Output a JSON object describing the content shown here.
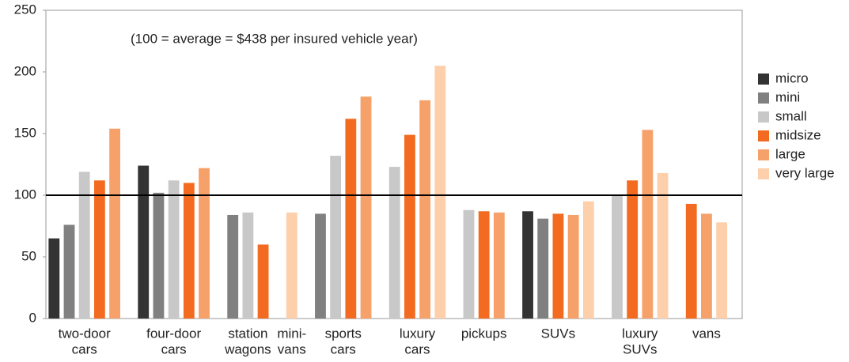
{
  "chart_data": {
    "type": "bar",
    "annotation": "(100 = average = $438 per insured vehicle year)",
    "categories": [
      [
        "two-door",
        "cars"
      ],
      [
        "four-door",
        "cars"
      ],
      [
        "station",
        "wagons"
      ],
      [
        "mini-",
        "vans"
      ],
      [
        "sports",
        "cars"
      ],
      [
        "luxury",
        "cars"
      ],
      [
        "pickups"
      ],
      [
        "SUVs"
      ],
      [
        "luxury",
        "SUVs"
      ],
      [
        "vans"
      ]
    ],
    "series": [
      {
        "name": "micro",
        "color": "#333333",
        "values": [
          65,
          124,
          null,
          null,
          null,
          null,
          null,
          87,
          null,
          null
        ]
      },
      {
        "name": "mini",
        "color": "#808080",
        "values": [
          76,
          102,
          84,
          null,
          85,
          null,
          null,
          81,
          null,
          null
        ]
      },
      {
        "name": "small",
        "color": "#c8c8c8",
        "values": [
          119,
          112,
          86,
          null,
          132,
          123,
          88,
          null,
          100,
          null
        ]
      },
      {
        "name": "midsize",
        "color": "#f26b21",
        "values": [
          112,
          110,
          60,
          null,
          162,
          149,
          87,
          85,
          112,
          93
        ]
      },
      {
        "name": "large",
        "color": "#f7a16a",
        "values": [
          154,
          122,
          null,
          null,
          180,
          177,
          86,
          84,
          153,
          85
        ]
      },
      {
        "name": "very large",
        "color": "#fdcfab",
        "values": [
          null,
          null,
          null,
          86,
          null,
          205,
          null,
          95,
          118,
          78
        ]
      }
    ],
    "reference_line": 100,
    "ylim": [
      0,
      250
    ],
    "yticks": [
      0,
      50,
      100,
      150,
      200,
      250
    ],
    "legend": "right"
  }
}
